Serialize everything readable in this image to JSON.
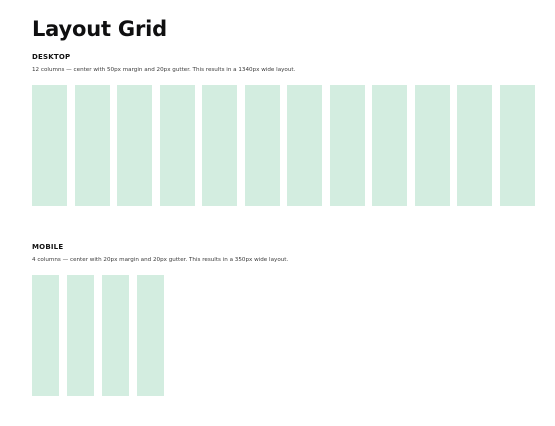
{
  "page": {
    "title": "Layout Grid"
  },
  "desktop": {
    "heading": "DESKTOP",
    "description": "12 columns — center with 50px margin and 20px gutter. This results in a 1340px wide layout.",
    "column_count": 12
  },
  "mobile": {
    "heading": "MOBILE",
    "description": "4 columns — center with 20px margin and 20px gutter. This results in a 350px wide layout.",
    "column_count": 4
  },
  "colors": {
    "column_fill": "#d3ede0",
    "text": "#111111",
    "muted_text": "#3a3a3a",
    "background": "#ffffff"
  }
}
